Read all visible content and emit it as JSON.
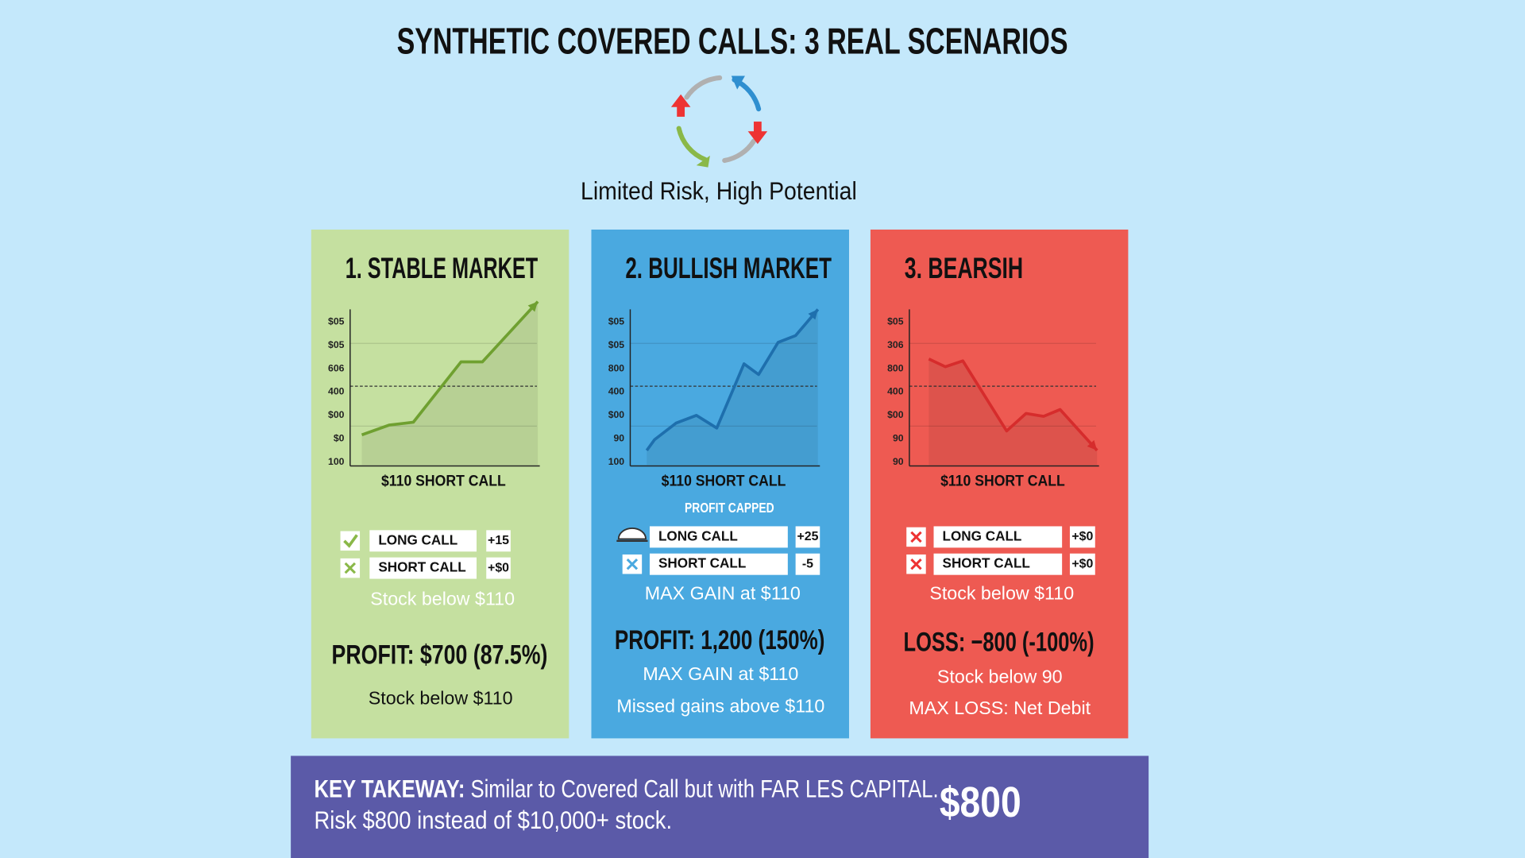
{
  "title": "SYNTHETIC COVERED CALLS: 3 REAL SCENARIOS",
  "subtitle": "Limited Risk, High Potential",
  "panels": [
    {
      "title": "1. STABLE MARKET",
      "ticks": [
        "$05",
        "$05",
        "606",
        "400",
        "$00",
        "$0",
        "100"
      ],
      "xlabel": "$110 SHORT CALL",
      "rows": [
        {
          "label": "LONG CALL",
          "value": "+15"
        },
        {
          "label": "SHORT CALL",
          "value": "+$0"
        }
      ],
      "caption": "Stock below $110",
      "result": "PROFIT: $700 (87.5%)",
      "footnotes": [
        "Stock below $110"
      ]
    },
    {
      "title": "2. BULLISH MARKET",
      "ticks": [
        "$05",
        "$05",
        "800",
        "400",
        "$00",
        "90",
        "100"
      ],
      "xlabel": "$110 SHORT CALL",
      "note": "PROFIT CAPPED",
      "rows": [
        {
          "label": "LONG CALL",
          "value": "+25"
        },
        {
          "label": "SHORT CALL",
          "value": "-5"
        }
      ],
      "caption": "MAX GAIN at $110",
      "result": "PROFIT: 1,200 (150%)",
      "footnotes": [
        "MAX GAIN at $110",
        "Missed gains above $110"
      ]
    },
    {
      "title": "3. BEARSIH",
      "ticks": [
        "$05",
        "306",
        "800",
        "400",
        "$00",
        "90",
        "90"
      ],
      "xlabel": "$110 SHORT CALL",
      "rows": [
        {
          "label": "LONG CALL",
          "value": "+$0"
        },
        {
          "label": "SHORT CALL",
          "value": "+$0"
        }
      ],
      "caption": "Stock below $110",
      "result": "LOSS: −800 (-100%)",
      "footnotes": [
        "Stock below 90",
        "MAX LOSS: Net Debit"
      ]
    }
  ],
  "takeaway": {
    "label": "KEY TAKEWAY:",
    "line1": "Similar to Covered Call but with FAR LES CAPITAL.",
    "line2": "Risk $800 instead of $10,000+ stock.",
    "amount": "$800"
  }
}
